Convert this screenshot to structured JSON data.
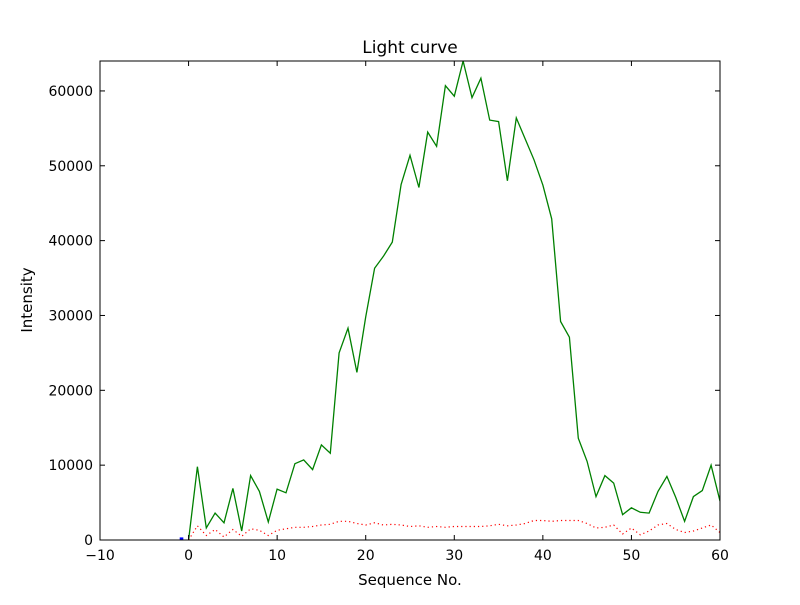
{
  "chart_data": {
    "type": "line",
    "title": "Light curve",
    "xlabel": "Sequence No.",
    "ylabel": "Intensity",
    "xlim": [
      -10,
      60
    ],
    "ylim": [
      0,
      64000
    ],
    "xticks": [
      -10,
      0,
      10,
      20,
      30,
      40,
      50,
      60
    ],
    "xtick_labels": [
      "−10",
      "0",
      "10",
      "20",
      "30",
      "40",
      "50",
      "60"
    ],
    "yticks": [
      0,
      10000,
      20000,
      30000,
      40000,
      50000,
      60000
    ],
    "ytick_labels": [
      "0",
      "10000",
      "20000",
      "30000",
      "40000",
      "50000",
      "60000"
    ],
    "grid": false,
    "series": [
      {
        "style": "solid",
        "color": "#008000",
        "x": [
          0,
          1,
          2,
          3,
          4,
          5,
          6,
          7,
          8,
          9,
          10,
          11,
          12,
          13,
          14,
          15,
          16,
          17,
          18,
          19,
          20,
          21,
          22,
          23,
          24,
          25,
          26,
          27,
          28,
          29,
          30,
          31,
          32,
          33,
          34,
          35,
          36,
          37,
          38,
          39,
          40,
          41,
          42,
          43,
          44,
          45,
          46,
          47,
          48,
          49,
          50,
          51,
          52,
          53,
          54,
          55,
          56,
          57,
          58,
          59,
          60
        ],
        "y": [
          0,
          9800,
          1600,
          3600,
          2300,
          6900,
          1200,
          8600,
          6500,
          2400,
          6800,
          6300,
          10200,
          10700,
          9400,
          12700,
          11600,
          25000,
          28300,
          22400,
          29800,
          36300,
          37900,
          39800,
          47500,
          51400,
          47100,
          54500,
          52600,
          60700,
          59300,
          64000,
          59100,
          61700,
          56100,
          55900,
          48000,
          56400,
          53600,
          50800,
          47400,
          42900,
          29200,
          27100,
          13600,
          10500,
          5800,
          8600,
          7600,
          3400,
          4300,
          3700,
          3600,
          6500,
          8500,
          5700,
          2500,
          5800,
          6600,
          10000,
          5200
        ]
      },
      {
        "style": "dotted",
        "color": "#ff0000",
        "x": [
          0,
          1,
          2,
          3,
          4,
          5,
          6,
          7,
          8,
          9,
          10,
          11,
          12,
          13,
          14,
          15,
          16,
          17,
          18,
          19,
          20,
          21,
          22,
          23,
          24,
          25,
          26,
          27,
          28,
          29,
          30,
          31,
          32,
          33,
          34,
          35,
          36,
          37,
          38,
          39,
          40,
          41,
          42,
          43,
          44,
          45,
          46,
          47,
          48,
          49,
          50,
          51,
          52,
          53,
          54,
          55,
          56,
          57,
          58,
          59,
          60
        ],
        "y": [
          0,
          1900,
          600,
          1400,
          400,
          1400,
          500,
          1500,
          1300,
          600,
          1300,
          1500,
          1700,
          1700,
          1800,
          2000,
          2100,
          2500,
          2500,
          2200,
          2000,
          2300,
          2000,
          2100,
          2000,
          1800,
          1900,
          1700,
          1800,
          1700,
          1800,
          1800,
          1800,
          1800,
          1900,
          2100,
          1900,
          2000,
          2200,
          2600,
          2600,
          2500,
          2600,
          2600,
          2600,
          2200,
          1600,
          1700,
          2000,
          800,
          1600,
          700,
          1200,
          2000,
          2200,
          1400,
          1000,
          1200,
          1600,
          2000,
          1000
        ]
      },
      {
        "style": "solid",
        "color": "#0000ff",
        "x": [
          -1,
          -0.6
        ],
        "y": [
          150,
          150
        ]
      }
    ]
  }
}
